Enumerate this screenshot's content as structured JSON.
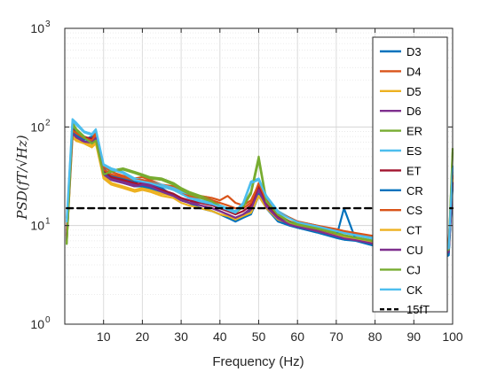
{
  "chart_data": {
    "type": "line",
    "xlabel": "Frequency (Hz)",
    "ylabel": "PSD(fT/√Hz)",
    "xlim": [
      0,
      100
    ],
    "ylim": [
      1,
      1000
    ],
    "yscale": "log",
    "grid": true,
    "minor_grid": true,
    "legend_position": "right",
    "x_ticks": [
      10,
      20,
      30,
      40,
      50,
      60,
      70,
      80,
      90,
      100
    ],
    "y_ticks": [
      1,
      10,
      100,
      1000
    ],
    "x_tick_labels": [
      "10",
      "20",
      "30",
      "40",
      "50",
      "60",
      "70",
      "80",
      "90",
      "100"
    ],
    "y_tick_labels": [
      {
        "base": "10",
        "exp": "0"
      },
      {
        "base": "10",
        "exp": "1"
      },
      {
        "base": "10",
        "exp": "2"
      },
      {
        "base": "10",
        "exp": "3"
      }
    ],
    "x": [
      0.5,
      2,
      3,
      5,
      7,
      8,
      10,
      12,
      15,
      18,
      20,
      22,
      25,
      28,
      30,
      32,
      35,
      38,
      40,
      42,
      44,
      46,
      48,
      50,
      52,
      55,
      58,
      60,
      65,
      70,
      72,
      75,
      80,
      85,
      90,
      95,
      97,
      99,
      100
    ],
    "series": [
      {
        "name": "D3",
        "color": "#0072BD",
        "width": 2.2,
        "dash": "",
        "values": [
          8,
          100,
          85,
          75,
          80,
          85,
          38,
          32,
          30,
          28,
          28,
          27,
          24,
          20,
          19,
          17,
          15,
          14,
          13,
          12,
          11,
          12,
          13,
          20,
          15,
          11,
          10,
          9.5,
          8.5,
          7.5,
          7.2,
          7,
          6.2,
          5.8,
          5.6,
          5.3,
          4.5,
          5,
          25
        ]
      },
      {
        "name": "D4",
        "color": "#D95319",
        "width": 2.2,
        "dash": "",
        "values": [
          9,
          85,
          90,
          80,
          75,
          90,
          40,
          35,
          32,
          30,
          31,
          29,
          26,
          25,
          22,
          21,
          20,
          19,
          18,
          20,
          17,
          16,
          18,
          26,
          19,
          14,
          12,
          11,
          10,
          9,
          8.5,
          8,
          7.5,
          7,
          7,
          6.5,
          6,
          7,
          35
        ]
      },
      {
        "name": "D5",
        "color": "#EDB120",
        "width": 2.2,
        "dash": "",
        "values": [
          7,
          80,
          75,
          70,
          65,
          70,
          32,
          27,
          25,
          23,
          24,
          23,
          21,
          20,
          18,
          17,
          16,
          15,
          14,
          13,
          12,
          13,
          14,
          22,
          16,
          12,
          11,
          10,
          9,
          8,
          7.8,
          7.5,
          6.8,
          6.5,
          6.3,
          6,
          5.5,
          6,
          30
        ]
      },
      {
        "name": "D6",
        "color": "#7E2F8E",
        "width": 2.2,
        "dash": "",
        "values": [
          7.5,
          90,
          80,
          70,
          72,
          80,
          35,
          30,
          28,
          26,
          27,
          26,
          23,
          21,
          19,
          18,
          16,
          15,
          14,
          13,
          12,
          13,
          15,
          24,
          16,
          12,
          10.5,
          10,
          9,
          8,
          7.5,
          7.3,
          6.6,
          6.2,
          6,
          5.8,
          5,
          5.5,
          28
        ]
      },
      {
        "name": "ER",
        "color": "#77AC30",
        "width": 2.2,
        "dash": "",
        "values": [
          6.5,
          110,
          95,
          80,
          70,
          75,
          34,
          36,
          38,
          35,
          33,
          31,
          30,
          27,
          24,
          22,
          20,
          18,
          16,
          15,
          14,
          16,
          22,
          50,
          18,
          13,
          11,
          10.5,
          9.5,
          8.5,
          8,
          7.6,
          7,
          6.6,
          6.3,
          6,
          5.2,
          5.8,
          60
        ]
      },
      {
        "name": "ES",
        "color": "#4DBEEE",
        "width": 2.2,
        "dash": "",
        "values": [
          12,
          120,
          110,
          90,
          85,
          95,
          42,
          38,
          35,
          30,
          29,
          28,
          26,
          24,
          22,
          20,
          18,
          17,
          16,
          15,
          14,
          17,
          28,
          30,
          20,
          14,
          12,
          11,
          10,
          9,
          8.6,
          8.2,
          7.5,
          7,
          6.8,
          6.5,
          5.5,
          6,
          40
        ]
      },
      {
        "name": "ET",
        "color": "#A2142F",
        "width": 2.2,
        "dash": "",
        "values": [
          8,
          95,
          85,
          78,
          76,
          82,
          36,
          31,
          29,
          27,
          26,
          25,
          23,
          21,
          19,
          18,
          17,
          16,
          15,
          14,
          13,
          14,
          16,
          25,
          17,
          12.5,
          11,
          10,
          9.2,
          8.2,
          7.8,
          7.4,
          6.8,
          6.4,
          6.1,
          5.9,
          5.1,
          5.6,
          27
        ]
      },
      {
        "name": "CR",
        "color": "#0072BD",
        "width": 2.2,
        "dash": "",
        "values": [
          7,
          88,
          82,
          72,
          70,
          78,
          34,
          29,
          27,
          25,
          25,
          24,
          22,
          20,
          18,
          17,
          15,
          14,
          13,
          12,
          11.5,
          12.5,
          14,
          21,
          15,
          11,
          10,
          9.5,
          8.6,
          7.6,
          15,
          7.2,
          6.4,
          6,
          5.8,
          5.5,
          4.8,
          5.2,
          26
        ]
      },
      {
        "name": "CS",
        "color": "#D95319",
        "width": 2.2,
        "dash": "",
        "values": [
          7.8,
          92,
          86,
          77,
          73,
          84,
          37,
          33,
          31,
          29,
          29,
          28,
          25,
          23,
          21,
          20,
          19,
          18,
          17,
          16,
          15,
          15,
          17,
          27,
          18,
          13.5,
          12,
          11,
          10,
          9.2,
          8.8,
          8.4,
          7.8,
          7.3,
          7.1,
          6.7,
          5.9,
          6.5,
          32
        ]
      },
      {
        "name": "CT",
        "color": "#EDB120",
        "width": 2.2,
        "dash": "",
        "values": [
          6.8,
          78,
          72,
          68,
          62,
          68,
          30,
          26,
          24,
          22,
          23,
          22,
          20,
          19,
          17,
          16,
          15,
          14,
          13,
          12.5,
          11.5,
          12.5,
          13.5,
          20,
          15,
          11.5,
          10.5,
          9.8,
          8.8,
          7.9,
          7.6,
          7.3,
          6.6,
          6.3,
          6.1,
          5.8,
          5.3,
          5.8,
          29
        ]
      },
      {
        "name": "CU",
        "color": "#7E2F8E",
        "width": 2.2,
        "dash": "",
        "values": [
          7.2,
          86,
          78,
          71,
          69,
          77,
          33,
          29,
          27,
          25,
          26,
          25,
          22,
          20,
          18,
          17,
          16,
          15,
          14,
          13,
          12,
          13,
          14.5,
          23,
          15.5,
          11.8,
          10.2,
          9.7,
          8.8,
          7.8,
          7.4,
          7.1,
          6.5,
          6.1,
          5.9,
          5.6,
          4.9,
          5.4,
          27
        ]
      },
      {
        "name": "CJ",
        "color": "#77AC30",
        "width": 2.2,
        "dash": "",
        "values": [
          6.6,
          105,
          92,
          78,
          68,
          73,
          33,
          35,
          37,
          34,
          32,
          30,
          29,
          26,
          23,
          21,
          19,
          17.5,
          15.5,
          14.5,
          13.5,
          15.5,
          21,
          46,
          17.5,
          12.8,
          10.8,
          10.2,
          9.3,
          8.3,
          7.9,
          7.5,
          6.9,
          6.5,
          6.2,
          5.9,
          5.1,
          5.7,
          55
        ]
      },
      {
        "name": "CK",
        "color": "#4DBEEE",
        "width": 2.2,
        "dash": "",
        "values": [
          11,
          115,
          105,
          88,
          83,
          92,
          41,
          37,
          34,
          29,
          28,
          27,
          25,
          23,
          21,
          19,
          17.5,
          16.5,
          15.5,
          14.5,
          13.5,
          16.5,
          27,
          29,
          19.5,
          13.5,
          11.8,
          10.8,
          9.8,
          8.8,
          8.4,
          8,
          7.3,
          6.9,
          6.7,
          6.4,
          5.4,
          5.9,
          38
        ]
      },
      {
        "name": "15fT",
        "color": "#000000",
        "width": 2.4,
        "dash": "7,5",
        "values": [
          15,
          15,
          15,
          15,
          15,
          15,
          15,
          15,
          15,
          15,
          15,
          15,
          15,
          15,
          15,
          15,
          15,
          15,
          15,
          15,
          15,
          15,
          15,
          15,
          15,
          15,
          15,
          15,
          15,
          15,
          15,
          15,
          15,
          15,
          15,
          15,
          15,
          15,
          15
        ]
      }
    ]
  }
}
